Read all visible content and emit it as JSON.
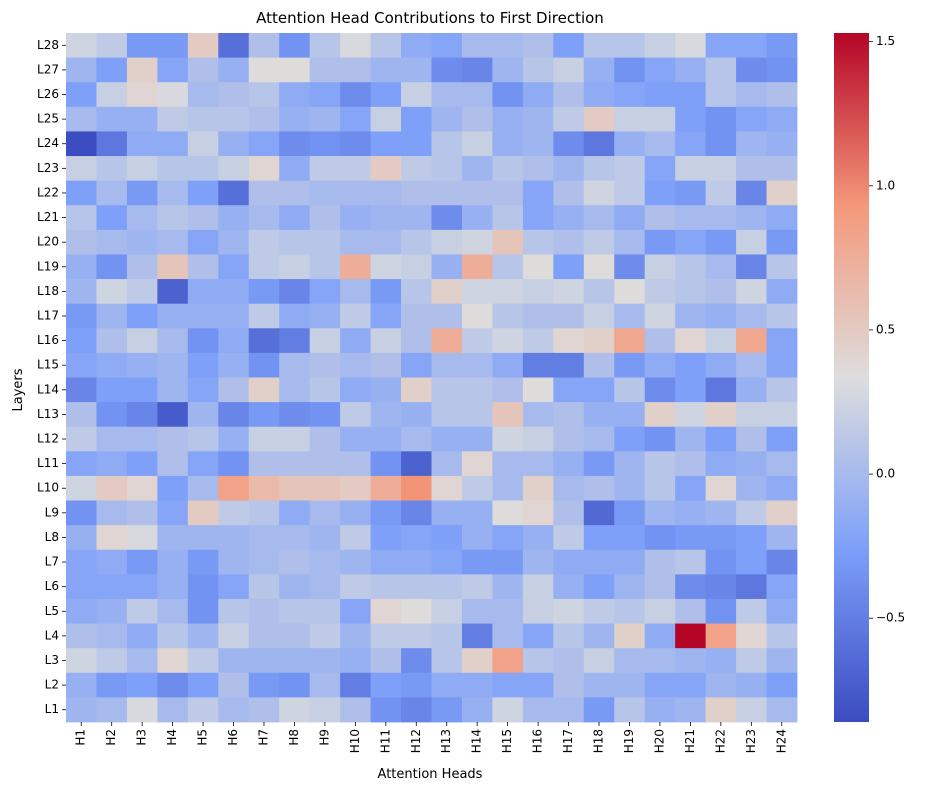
{
  "chart_data": {
    "type": "heatmap",
    "title": "Attention Head Contributions to First Direction",
    "xlabel": "Attention Heads",
    "ylabel": "Layers",
    "x_labels": [
      "H1",
      "H2",
      "H3",
      "H4",
      "H5",
      "H6",
      "H7",
      "H8",
      "H9",
      "H10",
      "H11",
      "H12",
      "H13",
      "H14",
      "H15",
      "H16",
      "H17",
      "H18",
      "H19",
      "H20",
      "H21",
      "H22",
      "H23",
      "H24"
    ],
    "y_labels": [
      "L28",
      "L27",
      "L26",
      "L25",
      "L24",
      "L23",
      "L22",
      "L21",
      "L20",
      "L19",
      "L18",
      "L17",
      "L16",
      "L15",
      "L14",
      "L13",
      "L12",
      "L11",
      "L10",
      "L9",
      "L8",
      "L7",
      "L6",
      "L5",
      "L4",
      "L3",
      "L2",
      "L1"
    ],
    "colormap": "coolwarm",
    "vmin": -0.86,
    "vmax": 1.53,
    "colorbar_ticks": [
      -0.5,
      0.0,
      0.5,
      1.0,
      1.5
    ],
    "colorbar_tick_labels": [
      "−0.5",
      "0.0",
      "0.5",
      "1.0",
      "1.5"
    ],
    "values": [
      [
        0.25,
        0.15,
        -0.3,
        -0.3,
        0.5,
        -0.6,
        0.05,
        -0.35,
        0.1,
        0.3,
        0.1,
        -0.15,
        -0.2,
        0.0,
        0.0,
        0.05,
        -0.25,
        0.1,
        0.1,
        0.2,
        0.3,
        -0.2,
        -0.2,
        -0.3
      ],
      [
        -0.05,
        -0.25,
        0.45,
        -0.2,
        0.05,
        -0.1,
        0.35,
        0.35,
        0.05,
        0.05,
        -0.05,
        -0.05,
        -0.4,
        -0.45,
        -0.05,
        0.1,
        0.2,
        -0.1,
        -0.35,
        -0.2,
        -0.1,
        0.1,
        -0.4,
        -0.35
      ],
      [
        -0.25,
        0.2,
        0.4,
        0.3,
        0.0,
        0.05,
        0.1,
        -0.15,
        -0.2,
        -0.4,
        -0.25,
        0.2,
        0.0,
        0.0,
        -0.35,
        -0.15,
        0.05,
        -0.15,
        -0.2,
        -0.25,
        -0.25,
        0.1,
        0.0,
        0.05
      ],
      [
        0.0,
        -0.1,
        -0.1,
        0.15,
        0.1,
        0.1,
        0.05,
        -0.1,
        -0.05,
        -0.2,
        0.2,
        -0.25,
        -0.05,
        0.05,
        -0.1,
        -0.05,
        0.15,
        0.5,
        0.2,
        0.2,
        -0.25,
        -0.35,
        -0.2,
        -0.15
      ],
      [
        -0.85,
        -0.55,
        -0.15,
        -0.15,
        0.2,
        -0.1,
        -0.2,
        -0.4,
        -0.35,
        -0.4,
        -0.25,
        -0.25,
        0.1,
        0.2,
        -0.1,
        -0.05,
        -0.4,
        -0.55,
        -0.1,
        0.0,
        -0.2,
        -0.35,
        -0.05,
        -0.1
      ],
      [
        0.2,
        0.1,
        0.2,
        0.1,
        0.1,
        0.2,
        0.4,
        -0.15,
        0.15,
        0.15,
        0.5,
        0.15,
        0.1,
        -0.05,
        0.1,
        0.05,
        -0.05,
        0.1,
        0.15,
        -0.2,
        0.2,
        0.2,
        0.05,
        0.05
      ],
      [
        -0.25,
        0.0,
        -0.3,
        0.0,
        -0.25,
        -0.6,
        0.05,
        0.05,
        0.0,
        0.0,
        0.0,
        0.05,
        0.05,
        0.05,
        0.05,
        -0.2,
        0.05,
        0.25,
        0.15,
        -0.25,
        -0.3,
        0.15,
        -0.45,
        0.45
      ],
      [
        0.1,
        -0.25,
        0.0,
        0.1,
        0.05,
        -0.1,
        0.0,
        -0.15,
        0.05,
        -0.1,
        -0.05,
        -0.05,
        -0.4,
        -0.1,
        0.1,
        -0.2,
        -0.1,
        0.0,
        -0.15,
        0.05,
        0.0,
        0.0,
        -0.05,
        -0.15
      ],
      [
        0.05,
        0.0,
        -0.05,
        0.0,
        -0.2,
        -0.05,
        0.15,
        0.1,
        0.1,
        0.0,
        0.0,
        0.1,
        0.2,
        0.25,
        0.55,
        0.1,
        0.05,
        0.15,
        0.0,
        -0.3,
        -0.2,
        -0.3,
        0.2,
        -0.3
      ],
      [
        -0.1,
        -0.35,
        0.05,
        0.55,
        0.05,
        -0.2,
        0.15,
        0.2,
        0.1,
        0.75,
        0.25,
        0.2,
        -0.1,
        0.75,
        0.1,
        0.35,
        -0.25,
        0.35,
        -0.4,
        0.2,
        0.1,
        0.0,
        -0.45,
        0.1
      ],
      [
        -0.05,
        0.25,
        0.15,
        -0.7,
        -0.15,
        -0.15,
        -0.3,
        -0.45,
        -0.2,
        0.0,
        -0.3,
        0.1,
        0.45,
        0.25,
        0.25,
        0.2,
        0.25,
        0.1,
        0.35,
        0.15,
        0.1,
        0.05,
        0.25,
        -0.15
      ],
      [
        -0.3,
        -0.05,
        -0.25,
        -0.1,
        -0.1,
        -0.1,
        0.15,
        -0.15,
        -0.1,
        0.15,
        -0.2,
        0.05,
        0.05,
        0.35,
        0.1,
        0.05,
        0.05,
        0.2,
        0.0,
        0.25,
        -0.05,
        -0.1,
        0.0,
        0.1
      ],
      [
        -0.25,
        0.05,
        0.2,
        0.0,
        -0.35,
        -0.15,
        -0.6,
        -0.5,
        0.2,
        -0.15,
        0.2,
        0.05,
        0.75,
        0.15,
        0.25,
        0.15,
        0.4,
        0.45,
        0.8,
        0.05,
        0.4,
        0.2,
        0.8,
        -0.2
      ],
      [
        -0.2,
        -0.15,
        -0.1,
        -0.05,
        -0.25,
        -0.1,
        -0.35,
        0.0,
        0.05,
        0.0,
        0.05,
        -0.2,
        0.0,
        0.0,
        -0.15,
        -0.5,
        -0.5,
        0.05,
        -0.3,
        -0.15,
        -0.25,
        -0.15,
        0.0,
        -0.2
      ],
      [
        -0.45,
        -0.25,
        -0.25,
        -0.05,
        -0.2,
        0.05,
        0.45,
        0.0,
        0.1,
        -0.15,
        -0.1,
        0.45,
        0.1,
        0.1,
        0.05,
        0.35,
        -0.2,
        -0.2,
        0.1,
        -0.4,
        -0.25,
        -0.55,
        -0.1,
        0.1
      ],
      [
        0.05,
        -0.35,
        -0.45,
        -0.75,
        -0.05,
        -0.45,
        -0.3,
        -0.4,
        -0.35,
        0.15,
        -0.05,
        -0.1,
        0.1,
        0.1,
        0.55,
        0.0,
        0.05,
        -0.1,
        -0.1,
        0.45,
        0.25,
        0.45,
        0.2,
        0.2
      ],
      [
        0.15,
        0.0,
        0.0,
        0.05,
        0.1,
        -0.1,
        0.2,
        0.2,
        0.05,
        -0.1,
        -0.1,
        0.0,
        -0.1,
        -0.1,
        0.25,
        0.2,
        0.05,
        0.0,
        -0.25,
        -0.35,
        -0.05,
        -0.25,
        0.05,
        -0.25
      ],
      [
        -0.2,
        -0.15,
        -0.25,
        0.05,
        -0.2,
        -0.35,
        0.05,
        0.05,
        0.05,
        0.05,
        -0.35,
        -0.7,
        0.0,
        0.4,
        0.0,
        0.0,
        -0.1,
        -0.3,
        -0.05,
        0.1,
        0.05,
        -0.15,
        -0.1,
        0.0
      ],
      [
        0.25,
        0.5,
        0.4,
        -0.25,
        0.0,
        0.85,
        0.65,
        0.55,
        0.55,
        0.5,
        0.75,
        0.95,
        0.4,
        0.15,
        0.0,
        0.45,
        0.0,
        0.05,
        -0.05,
        0.1,
        -0.2,
        0.4,
        -0.05,
        -0.15
      ],
      [
        -0.35,
        0.0,
        0.05,
        -0.2,
        0.5,
        0.15,
        0.1,
        -0.15,
        0.0,
        -0.1,
        -0.3,
        -0.45,
        -0.1,
        -0.1,
        0.35,
        0.4,
        0.05,
        -0.65,
        -0.3,
        -0.05,
        -0.1,
        -0.05,
        0.15,
        0.45
      ],
      [
        -0.1,
        0.4,
        0.3,
        -0.05,
        -0.05,
        -0.05,
        0.0,
        0.0,
        -0.05,
        0.15,
        -0.25,
        -0.2,
        -0.25,
        -0.1,
        -0.2,
        -0.1,
        0.15,
        -0.25,
        -0.25,
        -0.35,
        -0.3,
        -0.3,
        -0.25,
        -0.05
      ],
      [
        -0.2,
        -0.15,
        -0.3,
        -0.1,
        -0.3,
        -0.05,
        0.0,
        0.05,
        0.0,
        -0.05,
        -0.15,
        -0.15,
        -0.2,
        -0.3,
        -0.3,
        -0.05,
        -0.15,
        -0.15,
        -0.15,
        0.05,
        0.1,
        -0.35,
        -0.25,
        -0.45
      ],
      [
        -0.2,
        -0.2,
        -0.2,
        -0.1,
        -0.35,
        -0.2,
        0.1,
        -0.05,
        0.0,
        0.15,
        0.1,
        0.1,
        0.1,
        0.15,
        -0.05,
        0.2,
        -0.1,
        -0.25,
        -0.05,
        0.05,
        -0.4,
        -0.45,
        -0.55,
        -0.2
      ],
      [
        -0.15,
        -0.1,
        0.15,
        0.0,
        -0.35,
        0.1,
        0.05,
        0.1,
        0.1,
        -0.2,
        0.4,
        0.35,
        0.2,
        0.0,
        0.0,
        0.2,
        0.25,
        0.15,
        0.1,
        0.2,
        0.05,
        -0.35,
        0.15,
        -0.15
      ],
      [
        0.05,
        0.0,
        -0.15,
        0.1,
        -0.05,
        0.2,
        0.05,
        0.05,
        0.15,
        -0.05,
        0.15,
        0.15,
        0.1,
        -0.5,
        0.0,
        -0.2,
        0.1,
        -0.05,
        0.45,
        -0.15,
        1.53,
        0.85,
        0.4,
        0.1
      ],
      [
        0.25,
        0.15,
        0.0,
        0.4,
        0.15,
        -0.05,
        -0.05,
        -0.05,
        -0.05,
        -0.1,
        0.05,
        -0.4,
        0.1,
        0.45,
        0.85,
        0.1,
        0.05,
        0.2,
        0.0,
        0.0,
        -0.05,
        -0.1,
        0.15,
        -0.05
      ],
      [
        -0.1,
        -0.3,
        -0.25,
        -0.4,
        -0.25,
        0.05,
        -0.3,
        -0.35,
        0.0,
        -0.5,
        -0.25,
        -0.3,
        -0.15,
        -0.15,
        -0.2,
        -0.2,
        0.05,
        -0.05,
        -0.05,
        -0.2,
        -0.2,
        -0.05,
        -0.1,
        -0.25
      ],
      [
        -0.05,
        0.0,
        0.3,
        0.0,
        0.15,
        0.0,
        0.05,
        0.25,
        0.2,
        0.05,
        -0.35,
        -0.45,
        -0.3,
        -0.1,
        0.25,
        0.0,
        0.0,
        -0.3,
        0.1,
        -0.1,
        -0.05,
        0.45,
        0.2,
        0.0
      ]
    ]
  }
}
